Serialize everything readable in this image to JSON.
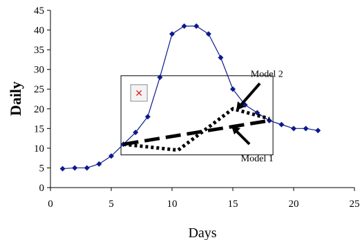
{
  "chart_data": {
    "type": "line",
    "xlabel": "Days",
    "ylabel": "Daily",
    "xlim": [
      0,
      25
    ],
    "ylim": [
      0,
      45
    ],
    "x_ticks": [
      "0",
      "5",
      "10",
      "15",
      "20",
      "25"
    ],
    "y_ticks": [
      "0",
      "5",
      "10",
      "15",
      "20",
      "25",
      "30",
      "35",
      "40",
      "45"
    ],
    "grid": false,
    "legend": "none",
    "series": [
      {
        "color": "#0b1a8c",
        "marker": "diamond",
        "x": [
          1,
          2,
          3,
          4,
          5,
          6,
          7,
          8,
          9,
          10,
          11,
          12,
          13,
          14,
          15,
          16,
          17,
          18,
          19,
          20,
          21,
          22
        ],
        "y": [
          4.8,
          5,
          5,
          6,
          8,
          11,
          14,
          18,
          28,
          39,
          41,
          41,
          39,
          33,
          25,
          21,
          19,
          17,
          16,
          15,
          15,
          14.5
        ]
      }
    ],
    "models": [
      {
        "label": "Model 1",
        "style": "dashed-thick",
        "x": [
          6,
          10.5,
          15,
          18
        ],
        "y": [
          11,
          9.5,
          20,
          17.5
        ]
      },
      {
        "label": "Model 2",
        "style": "dotted-thick",
        "x": [
          6,
          18
        ],
        "y": [
          11,
          17
        ]
      }
    ],
    "annotations": [
      {
        "text": "Model 2",
        "x": 17.6,
        "y": 29
      },
      {
        "text": "Model 1",
        "x": 16.8,
        "y": 7.5
      }
    ],
    "inset_box": {
      "x0": 5.8,
      "x1": 18.3,
      "y0": 8.3,
      "y1": 28.4
    },
    "broken_image_icon": "broken-image-icon"
  }
}
